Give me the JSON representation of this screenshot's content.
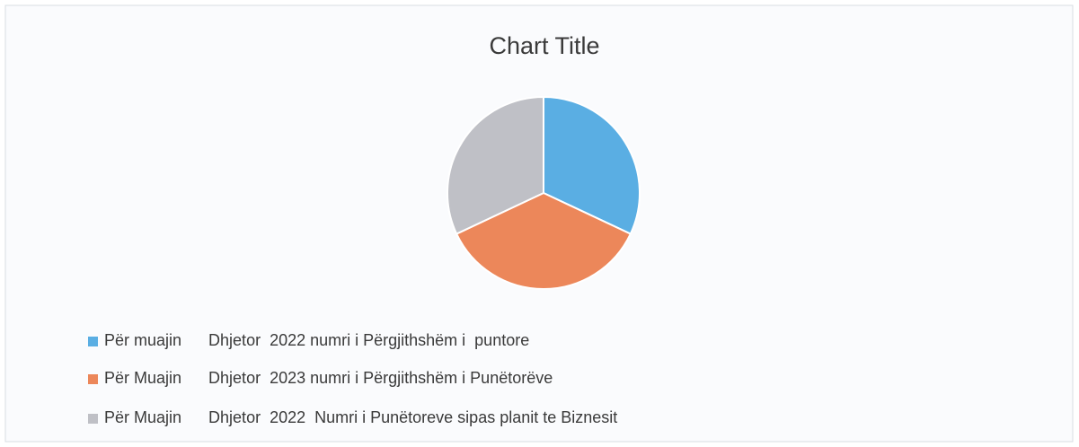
{
  "chart_data": {
    "type": "pie",
    "title": "Chart Title",
    "categories": [
      "Për muajin      Dhjetor  2022 numri i Përgjithshëm i  puntore",
      "Për Muajin      Dhjetor  2023 numri i Përgjithshëm i Punëtorëve",
      "Për Muajin      Dhjetor  2022  Numri i Punëtoreve sipas planit te Biznesit"
    ],
    "values": [
      32,
      36,
      32
    ],
    "colors": [
      "#5aaee3",
      "#ec875a",
      "#bfc0c6"
    ],
    "legend": "bottom-left"
  }
}
